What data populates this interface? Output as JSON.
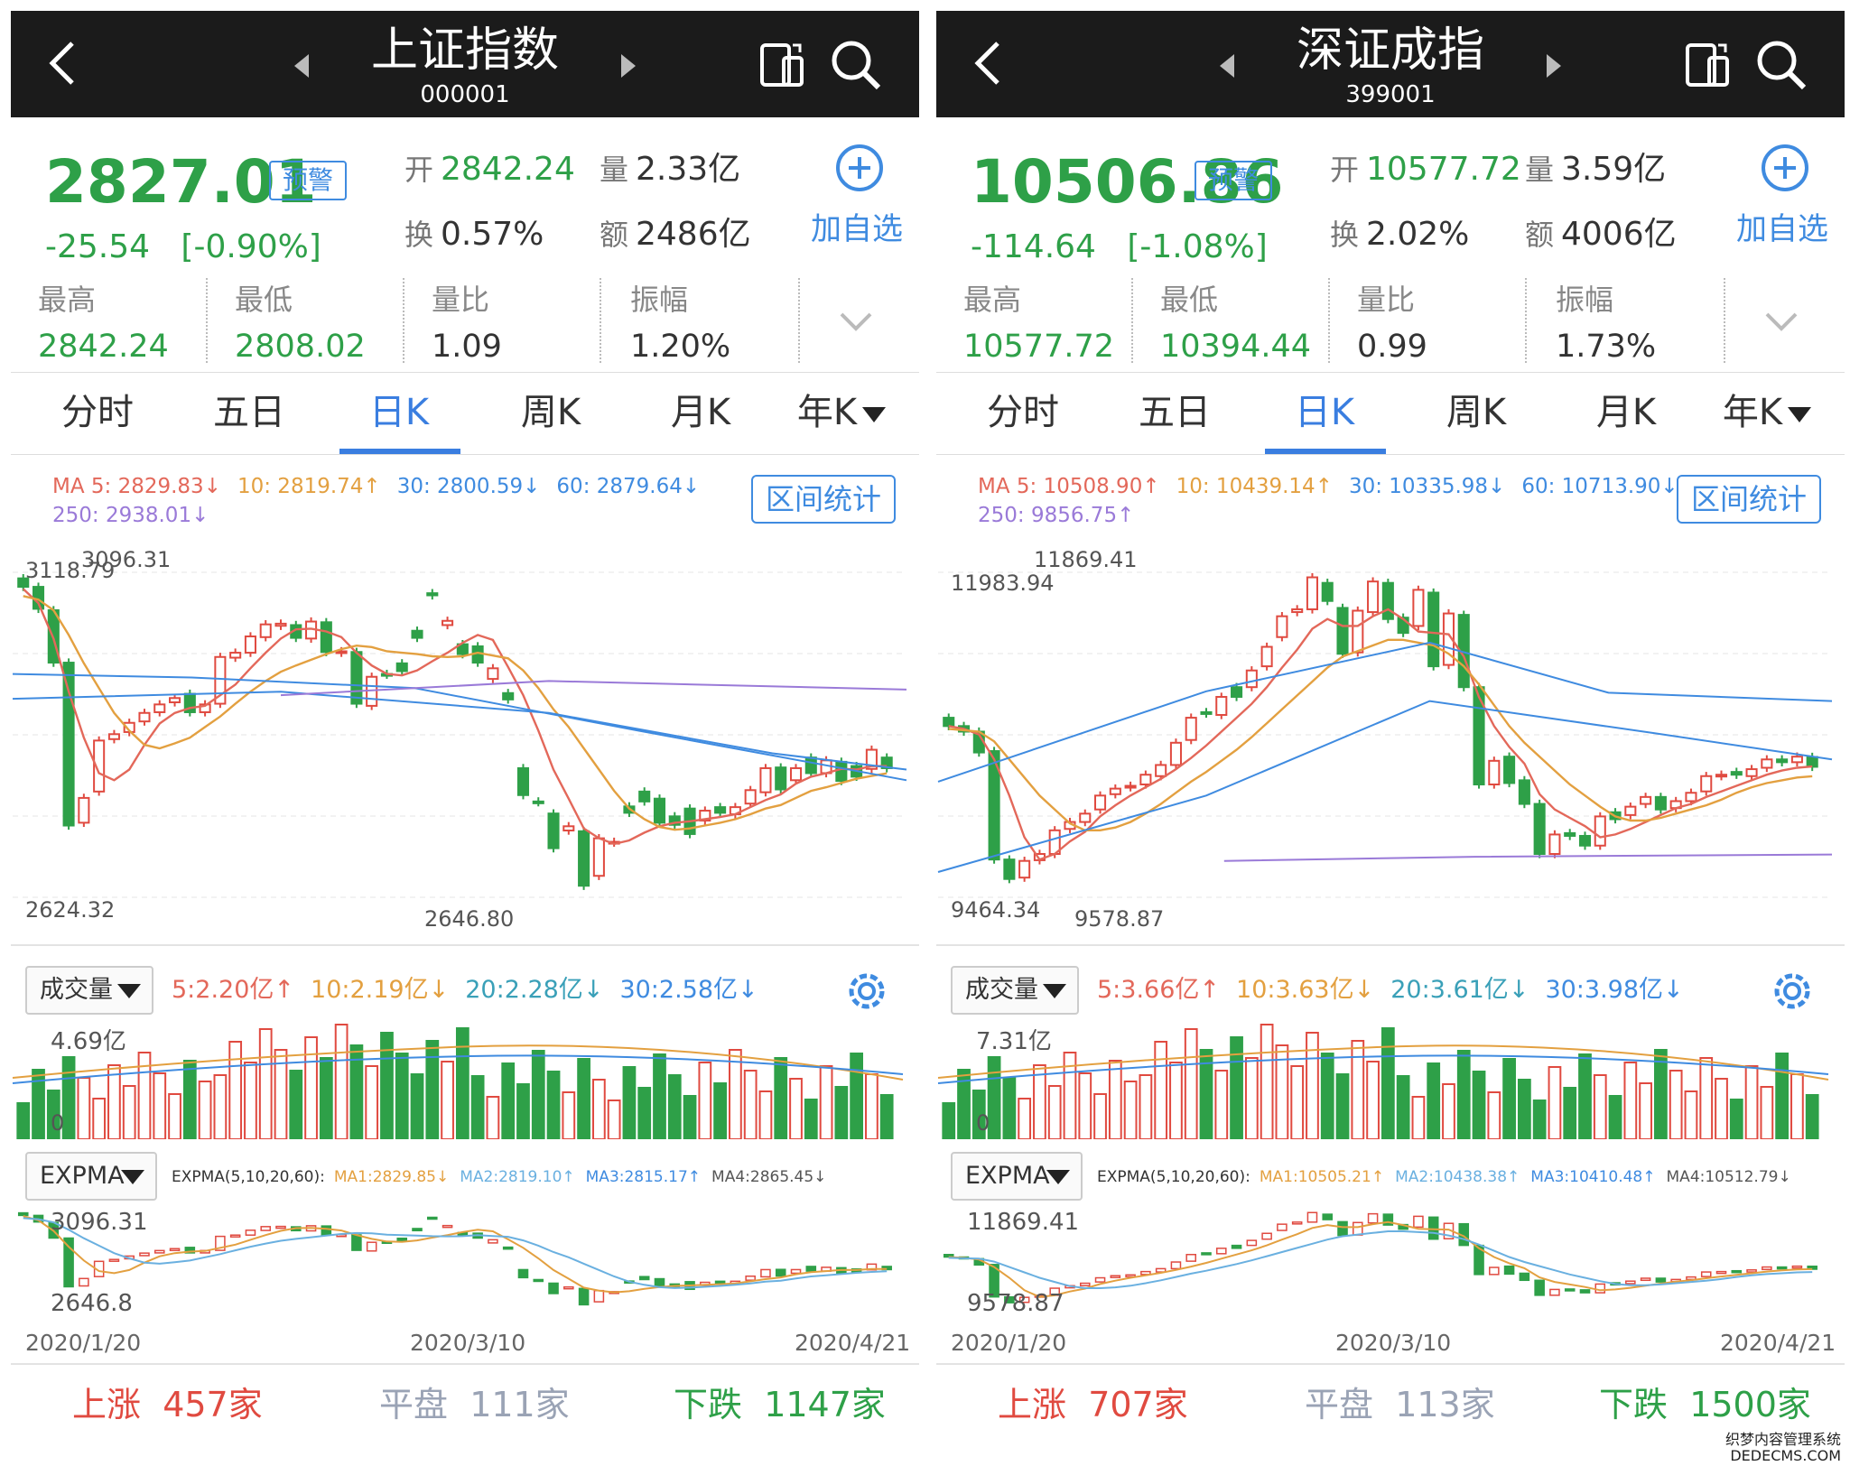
{
  "colors": {
    "up": "#e04a40",
    "down": "#2ea048",
    "flat": "#9aa3b5",
    "accent": "#3f8be0",
    "ma5": "#e3685a",
    "ma10": "#e3a040",
    "ma30": "#3f8be0",
    "ma60": "#3f8be0",
    "ma250": "#9a7ad8"
  },
  "panels": [
    {
      "header": {
        "title": "上证指数",
        "code": "000001"
      },
      "quote": {
        "price": "2827.01",
        "change": "-25.54",
        "change_pct": "[-0.90%]",
        "open_label": "开",
        "open": "2842.24",
        "vol_label": "量",
        "vol": "2.33亿",
        "turn_label": "换",
        "turn": "0.57%",
        "amt_label": "额",
        "amt": "2486亿"
      },
      "alert_label": "预警",
      "watch_label": "加自选",
      "row2": [
        {
          "label": "最高",
          "value": "2842.24"
        },
        {
          "label": "最低",
          "value": "2808.02"
        },
        {
          "label": "量比",
          "value": "1.09"
        },
        {
          "label": "振幅",
          "value": "1.20%"
        }
      ],
      "tabs": [
        "分时",
        "五日",
        "日K",
        "周K",
        "月K",
        "年K"
      ],
      "ma": {
        "ma5": "MA 5: 2829.83",
        "ma10": "10: 2819.74",
        "ma30": "30: 2800.59",
        "ma60": "60: 2879.64",
        "ma250": "250: 2938.01",
        "a5": "↓",
        "a10": "↑",
        "a30": "↓",
        "a60": "↓",
        "a250": "↓"
      },
      "range_btn": "区间统计",
      "kline": {
        "top_left": "3118.79",
        "hi_mark": "3096.31",
        "bottom_left": "2624.32",
        "lo_mark": "2646.80"
      },
      "vol": {
        "dropdown": "成交量",
        "m5": "5:2.20亿",
        "m10": "10:2.19亿",
        "m20": "20:2.28亿",
        "m30": "30:2.58亿",
        "a5": "↑",
        "a10": "↓",
        "a20": "↓",
        "a30": "↓",
        "top": "4.69亿",
        "zero": "0"
      },
      "expma": {
        "dropdown": "EXPMA",
        "params": "EXPMA(5,10,20,60):",
        "m1": "MA1:2829.85",
        "m2": "MA2:2819.10",
        "m3": "MA3:2815.17",
        "m4": "MA4:2865.45",
        "a1": "↓",
        "a2": "↑",
        "a3": "↑",
        "a4": "↓",
        "hi": "3096.31",
        "lo": "2646.8"
      },
      "dates": [
        "2020/1/20",
        "2020/3/10",
        "2020/4/21"
      ],
      "breadth": {
        "up_label": "上涨",
        "up": "457家",
        "flat_label": "平盘",
        "flat": "111家",
        "down_label": "下跌",
        "down": "1147家"
      }
    },
    {
      "header": {
        "title": "深证成指",
        "code": "399001"
      },
      "quote": {
        "price": "10506.86",
        "change": "-114.64",
        "change_pct": "[-1.08%]",
        "open_label": "开",
        "open": "10577.72",
        "vol_label": "量",
        "vol": "3.59亿",
        "turn_label": "换",
        "turn": "2.02%",
        "amt_label": "额",
        "amt": "4006亿"
      },
      "alert_label": "预警",
      "watch_label": "加自选",
      "row2": [
        {
          "label": "最高",
          "value": "10577.72"
        },
        {
          "label": "最低",
          "value": "10394.44"
        },
        {
          "label": "量比",
          "value": "0.99"
        },
        {
          "label": "振幅",
          "value": "1.73%"
        }
      ],
      "tabs": [
        "分时",
        "五日",
        "日K",
        "周K",
        "月K",
        "年K"
      ],
      "ma": {
        "ma5": "MA 5: 10508.90",
        "ma10": "10: 10439.14",
        "ma30": "30: 10335.98",
        "ma60": "60: 10713.90",
        "ma250": "250: 9856.75",
        "a5": "↑",
        "a10": "↑",
        "a30": "↓",
        "a60": "↓",
        "a250": "↑"
      },
      "range_btn": "区间统计",
      "kline": {
        "top_left": "11983.94",
        "hi_mark": "11869.41",
        "bottom_left": "9464.34",
        "lo_mark": "9578.87"
      },
      "vol": {
        "dropdown": "成交量",
        "m5": "5:3.66亿",
        "m10": "10:3.63亿",
        "m20": "20:3.61亿",
        "m30": "30:3.98亿",
        "a5": "↑",
        "a10": "↓",
        "a20": "↓",
        "a30": "↓",
        "top": "7.31亿",
        "zero": "0"
      },
      "expma": {
        "dropdown": "EXPMA",
        "params": "EXPMA(5,10,20,60):",
        "m1": "MA1:10505.21",
        "m2": "MA2:10438.38",
        "m3": "MA3:10410.48",
        "m4": "MA4:10512.79",
        "a1": "↑",
        "a2": "↑",
        "a3": "↑",
        "a4": "↓",
        "hi": "11869.41",
        "lo": "9578.87"
      },
      "dates": [
        "2020/1/20",
        "2020/3/10",
        "2020/4/21"
      ],
      "breadth": {
        "up_label": "上涨",
        "up": "707家",
        "flat_label": "平盘",
        "flat": "113家",
        "down_label": "下跌",
        "down": "1500家"
      }
    }
  ],
  "chart_data": [
    {
      "type": "candlestick",
      "title": "上证指数 日K",
      "x_range": [
        "2020/1/20",
        "2020/4/21"
      ],
      "ylim": [
        2624.32,
        3118.79
      ],
      "close": [
        3083,
        3052,
        2976,
        2746,
        2785,
        2866,
        2875,
        2891,
        2905,
        2917,
        2926,
        2906,
        2917,
        2984,
        2990,
        3013,
        3030,
        3031,
        3011,
        3034,
        2991,
        2992,
        2918,
        2956,
        2959,
        2964,
        3011,
        3071,
        3035,
        2988,
        2976,
        2968,
        2924,
        2789,
        2779,
        2714,
        2745,
        2661,
        2728,
        2723,
        2764,
        2780,
        2750,
        2747,
        2734,
        2767,
        2764,
        2772,
        2796,
        2827,
        2797,
        2827,
        2820,
        2838,
        2809,
        2815,
        2853,
        2827
      ],
      "open": [
        3095,
        3083,
        3050,
        2976,
        2750,
        2794,
        2868,
        2878,
        2893,
        2906,
        2920,
        2932,
        2906,
        2918,
        2983,
        2990,
        3012,
        3028,
        3029,
        3010,
        3033,
        2990,
        2991,
        2915,
        2960,
        2975,
        3021,
        3074,
        3029,
        3002,
        2999,
        2953,
        2933,
        2827,
        2780,
        2763,
        2739,
        2738,
        2675,
        2722,
        2773,
        2794,
        2784,
        2759,
        2770,
        2753,
        2772,
        2762,
        2777,
        2793,
        2828,
        2810,
        2842,
        2820,
        2836,
        2830,
        2826,
        2842
      ],
      "ma5": [
        3080,
        3060,
        3010,
        2935,
        2870,
        2820,
        2810,
        2825,
        2860,
        2890,
        2905,
        2912,
        2915,
        2930,
        2945,
        2968,
        2990,
        3010,
        3023,
        3024,
        3020,
        3012,
        2990,
        2972,
        2960,
        2958,
        2965,
        2978,
        2990,
        3004,
        3015,
        3008,
        2970,
        2930,
        2880,
        2825,
        2784,
        2742,
        2728,
        2720,
        2725,
        2736,
        2745,
        2750,
        2752,
        2755,
        2758,
        2762,
        2772,
        2782,
        2790,
        2805,
        2815,
        2820,
        2826,
        2825,
        2830,
        2829.83
      ],
      "ma10": [
        3070,
        3065,
        3050,
        3015,
        2975,
        2940,
        2905,
        2880,
        2860,
        2855,
        2862,
        2870,
        2885,
        2900,
        2918,
        2935,
        2950,
        2963,
        2972,
        2980,
        2988,
        2995,
        3000,
        2998,
        2992,
        2990,
        2988,
        2985,
        2984,
        2985,
        2990,
        2986,
        2982,
        2965,
        2940,
        2910,
        2885,
        2855,
        2825,
        2795,
        2770,
        2755,
        2744,
        2740,
        2742,
        2746,
        2750,
        2755,
        2762,
        2770,
        2775,
        2785,
        2795,
        2800,
        2806,
        2812,
        2816,
        2819.74
      ]
    },
    {
      "type": "candlestick",
      "title": "深证成指 日K",
      "x_range": [
        "2020/1/20",
        "2020/4/21"
      ],
      "ylim": [
        9464.34,
        11983.94
      ],
      "close": [
        10800,
        10760,
        10610,
        9840,
        9700,
        9830,
        9880,
        10050,
        10110,
        10170,
        10300,
        10350,
        10370,
        10450,
        10520,
        10680,
        10860,
        10890,
        11010,
        11010,
        11200,
        11370,
        11590,
        11640,
        11870,
        11700,
        11320,
        11630,
        11840,
        11570,
        11470,
        11780,
        11230,
        11610,
        11080,
        10380,
        10550,
        10390,
        10240,
        9880,
        10020,
        10010,
        9940,
        10150,
        10130,
        10220,
        10290,
        10200,
        10260,
        10320,
        10440,
        10450,
        10450,
        10490,
        10560,
        10540,
        10580,
        10507
      ],
      "open": [
        10860,
        10800,
        10760,
        10620,
        9840,
        9710,
        9835,
        9880,
        10060,
        10110,
        10200,
        10310,
        10360,
        10380,
        10440,
        10520,
        10700,
        10900,
        10880,
        11080,
        11080,
        11230,
        11440,
        11620,
        11640,
        11830,
        11650,
        11330,
        11620,
        11830,
        11580,
        11520,
        11760,
        11240,
        11600,
        11080,
        10380,
        10580,
        10410,
        10240,
        9880,
        10030,
        10010,
        9940,
        10180,
        10160,
        10240,
        10290,
        10210,
        10260,
        10330,
        10440,
        10470,
        10440,
        10500,
        10560,
        10540,
        10578
      ],
      "ma5": [
        10800,
        10780,
        10740,
        10560,
        10300,
        10000,
        9840,
        9880,
        9970,
        10040,
        10150,
        10230,
        10300,
        10360,
        10420,
        10490,
        10570,
        10660,
        10760,
        10860,
        10960,
        11080,
        11220,
        11350,
        11500,
        11570,
        11520,
        11520,
        11590,
        11640,
        11570,
        11480,
        11470,
        11460,
        11300,
        11010,
        10800,
        10650,
        10530,
        10310,
        10200,
        10140,
        10080,
        10000,
        10020,
        10060,
        10110,
        10160,
        10210,
        10240,
        10290,
        10330,
        10370,
        10410,
        10450,
        10480,
        10500,
        10508.9
      ],
      "ma10": [
        10780,
        10770,
        10760,
        10690,
        10560,
        10430,
        10300,
        10200,
        10100,
        10050,
        10050,
        10070,
        10110,
        10170,
        10240,
        10320,
        10400,
        10470,
        10550,
        10630,
        10720,
        10820,
        10920,
        11020,
        11120,
        11220,
        11300,
        11340,
        11380,
        11420,
        11420,
        11400,
        11380,
        11320,
        11230,
        11100,
        10950,
        10800,
        10680,
        10580,
        10480,
        10380,
        10300,
        10220,
        10150,
        10120,
        10120,
        10140,
        10170,
        10200,
        10230,
        10270,
        10320,
        10360,
        10390,
        10410,
        10430,
        10439.14
      ]
    }
  ]
}
